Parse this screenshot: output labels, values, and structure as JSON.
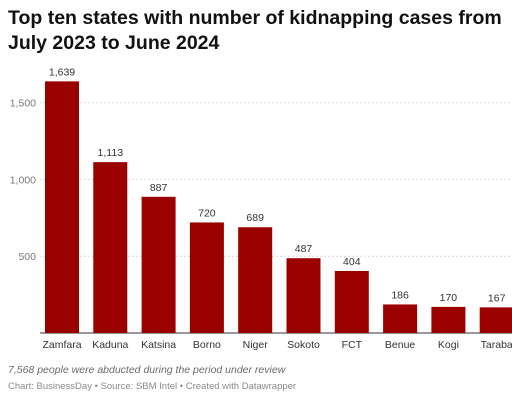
{
  "chart_data": {
    "type": "bar",
    "title": "Top ten states with number of kidnapping cases from July 2023 to June 2024",
    "categories": [
      "Zamfara",
      "Kaduna",
      "Katsina",
      "Borno",
      "Niger",
      "Sokoto",
      "FCT",
      "Benue",
      "Kogi",
      "Taraba"
    ],
    "values": [
      1639,
      1113,
      887,
      720,
      689,
      487,
      404,
      186,
      170,
      167
    ],
    "value_labels": [
      "1,639",
      "1,113",
      "887",
      "720",
      "689",
      "487",
      "404",
      "186",
      "170",
      "167"
    ],
    "yticks": [
      500,
      1000,
      1500
    ],
    "ytick_labels": [
      "500",
      "1,000",
      "1,500"
    ],
    "ylim": [
      0,
      1700
    ],
    "xlabel": "",
    "ylabel": "",
    "grid": true,
    "bar_color": "#9a0000"
  },
  "note": "7,568 people were abducted during the period under review",
  "footer": {
    "chart_by": "Chart: BusinessDay",
    "source": "Source: SBM Intel",
    "created": "Created with Datawrapper",
    "separator": " • "
  }
}
